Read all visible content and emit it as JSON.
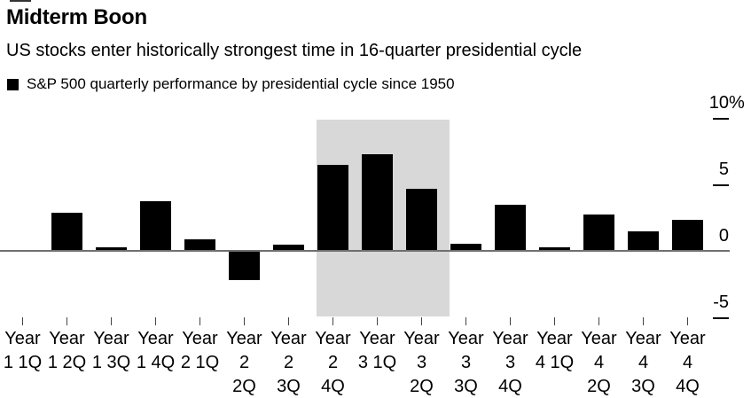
{
  "header": {
    "title": "Midterm Boon",
    "subtitle": "US stocks enter historically strongest time in 16-quarter presidential cycle"
  },
  "legend": {
    "label": "S&P 500 quarterly performance by presidential cycle since 1950",
    "swatch_color": "#000000"
  },
  "chart_data": {
    "type": "bar",
    "title": "Midterm Boon",
    "subtitle": "US stocks enter historically strongest time in 16-quarter presidential cycle",
    "series_name": "S&P 500 quarterly performance by presidential cycle since 1950",
    "unit": "%",
    "categories": [
      "Year 1 1Q",
      "Year 1 2Q",
      "Year 1 3Q",
      "Year 1 4Q",
      "Year 2 1Q",
      "Year 2 2Q",
      "Year 2 3Q",
      "Year 2 4Q",
      "Year 3 1Q",
      "Year 3 2Q",
      "Year 3 3Q",
      "Year 3 4Q",
      "Year 4 1Q",
      "Year 4 2Q",
      "Year 4 3Q",
      "Year 4 4Q"
    ],
    "category_label_lines": [
      [
        "Year",
        "1 1Q"
      ],
      [
        "Year",
        "1 2Q"
      ],
      [
        "Year",
        "1 3Q"
      ],
      [
        "Year",
        "1 4Q"
      ],
      [
        "Year",
        "2 1Q"
      ],
      [
        "Year",
        "2",
        "2Q"
      ],
      [
        "Year",
        "2",
        "3Q"
      ],
      [
        "Year",
        "2",
        "4Q"
      ],
      [
        "Year",
        "3 1Q"
      ],
      [
        "Year",
        "3",
        "2Q"
      ],
      [
        "Year",
        "3",
        "3Q"
      ],
      [
        "Year",
        "3",
        "4Q"
      ],
      [
        "Year",
        "4 1Q"
      ],
      [
        "Year",
        "4",
        "2Q"
      ],
      [
        "Year",
        "4",
        "3Q"
      ],
      [
        "Year",
        "4",
        "4Q"
      ]
    ],
    "values": [
      0.1,
      2.9,
      0.3,
      3.8,
      0.9,
      -2.1,
      0.5,
      6.5,
      7.3,
      4.7,
      0.6,
      3.5,
      0.3,
      2.8,
      1.5,
      2.4
    ],
    "ylim": [
      -5,
      10
    ],
    "yticks": [
      {
        "value": 10,
        "label": "10",
        "suffix": "%"
      },
      {
        "value": 5,
        "label": "5",
        "suffix": ""
      },
      {
        "value": 0,
        "label": "0",
        "suffix": ""
      },
      {
        "value": -5,
        "label": "-5",
        "suffix": ""
      }
    ],
    "grid": "off",
    "legend_position": "top-left",
    "bar_color": "#000000",
    "axis_line_color": "#6f6f6f",
    "highlight_band": {
      "from_category": "Year 2 4Q",
      "to_category": "Year 3 2Q",
      "color": "#d8d8d8"
    }
  }
}
